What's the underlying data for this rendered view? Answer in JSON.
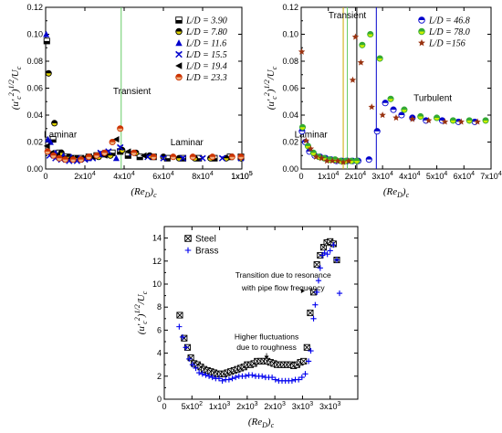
{
  "chart_data": [
    {
      "type": "scatter",
      "id": "a",
      "xlabel": "(Re_D)_c",
      "ylabel": "(u'_c^2)^{1/2}/U_c",
      "xlim": [
        0,
        100000
      ],
      "ylim": [
        0,
        0.12
      ],
      "x_ticks": [
        0,
        20000,
        40000,
        60000,
        80000,
        100000
      ],
      "x_tick_labels": [
        "0",
        "2x10⁴",
        "4x10⁴",
        "6x10⁴",
        "8x10⁴",
        "1x10⁵",
        "1x10⁵"
      ],
      "x_tick_values": [
        0,
        20000,
        40000,
        60000,
        80000,
        100000,
        120000
      ],
      "y_ticks": [
        0,
        0.02,
        0.04,
        0.06,
        0.08,
        0.1,
        0.12
      ],
      "y_tick_labels": [
        "0.00",
        "0.02",
        "0.04",
        "0.06",
        "0.08",
        "0.10",
        "0.12"
      ],
      "vertical_lines": [
        {
          "x": 38500,
          "color": "#66cc66"
        }
      ],
      "annotations": [
        {
          "text": "Transient",
          "x": 44000,
          "y": 0.0555
        },
        {
          "text": "Laminar",
          "x": 7500,
          "y": 0.0235
        },
        {
          "text": "Laminar",
          "x": 72000,
          "y": 0.0175
        }
      ],
      "series": [
        {
          "name": "L/D = 3.90",
          "marker": "square-half",
          "color": "#000000",
          "x": [
            600,
            3800,
            7000,
            10000,
            14000,
            18000,
            22000,
            26000,
            30000,
            34000,
            38000,
            42000,
            48000,
            55000,
            62000,
            70000,
            78000,
            86000,
            94000,
            102000
          ],
          "y": [
            0.095,
            0.022,
            0.012,
            0.009,
            0.008,
            0.008,
            0.009,
            0.01,
            0.011,
            0.012,
            0.013,
            0.01,
            0.009,
            0.009,
            0.008,
            0.008,
            0.008,
            0.008,
            0.009,
            0.009
          ]
        },
        {
          "name": "L/D = 7.80",
          "marker": "circle-half",
          "color": "#000000",
          "fill2": "#e0d400",
          "x": [
            1500,
            4500,
            8000,
            12000,
            16000,
            21000,
            27000,
            33000,
            39000,
            46000,
            53000,
            60000,
            68000,
            76000,
            84000,
            92000,
            100000
          ],
          "y": [
            0.071,
            0.034,
            0.012,
            0.009,
            0.008,
            0.008,
            0.009,
            0.01,
            0.014,
            0.012,
            0.01,
            0.009,
            0.008,
            0.008,
            0.008,
            0.008,
            0.008
          ]
        },
        {
          "name": "L/D = 11.6",
          "marker": "triangle-up",
          "color": "#0000cc",
          "x": [
            300,
            1200,
            2500,
            5000,
            9000,
            13000,
            17000,
            22000,
            28000,
            36000
          ],
          "y": [
            0.1,
            0.022,
            0.02,
            0.012,
            0.01,
            0.009,
            0.008,
            0.008,
            0.011,
            0.008
          ]
        },
        {
          "name": "L/D = 15.5",
          "marker": "x-cross",
          "color": "#0000cc",
          "x": [
            2000,
            5000,
            8000,
            12000,
            16000,
            20000,
            24000,
            28000,
            32000,
            38000,
            44000,
            52000,
            60000,
            70000,
            80000,
            90000,
            100000
          ],
          "y": [
            0.01,
            0.008,
            0.007,
            0.006,
            0.006,
            0.007,
            0.008,
            0.012,
            0.013,
            0.016,
            0.012,
            0.009,
            0.008,
            0.008,
            0.008,
            0.008,
            0.008
          ]
        },
        {
          "name": "L/D = 19.4",
          "marker": "triangle-left",
          "color": "#000000",
          "x": [
            700,
            3000,
            6000,
            9000,
            13000,
            18000,
            24000,
            30000,
            36000,
            42000,
            50000
          ],
          "y": [
            0.017,
            0.012,
            0.01,
            0.008,
            0.008,
            0.008,
            0.009,
            0.01,
            0.022,
            0.013,
            0.01
          ]
        },
        {
          "name": "L/D = 23.3",
          "marker": "circle-half",
          "color": "#cc3300",
          "fill2": "#f0b080",
          "x": [
            1000,
            4000,
            7000,
            10000,
            14000,
            18000,
            22000,
            26000,
            30000,
            34000,
            38000,
            45000,
            55000,
            65000,
            75000,
            85000,
            95000,
            103000
          ],
          "y": [
            0.013,
            0.01,
            0.008,
            0.007,
            0.007,
            0.007,
            0.009,
            0.01,
            0.012,
            0.02,
            0.03,
            0.012,
            0.009,
            0.009,
            0.009,
            0.009,
            0.009,
            0.009
          ]
        }
      ]
    },
    {
      "type": "scatter",
      "id": "b",
      "xlabel": "(Re_D)_c",
      "ylabel": "(u'_c^2)^{1/2}/U_c",
      "xlim": [
        0,
        70000
      ],
      "ylim": [
        0,
        0.12
      ],
      "x_ticks": [
        0,
        10000,
        20000,
        30000,
        40000,
        50000,
        60000,
        70000
      ],
      "x_tick_labels": [
        "0",
        "1x10⁴",
        "2x10⁴",
        "3x10⁴",
        "4x10⁴",
        "5x10⁴",
        "6x10⁴",
        "7x10⁴"
      ],
      "y_ticks": [
        0,
        0.02,
        0.04,
        0.06,
        0.08,
        0.1,
        0.12
      ],
      "y_tick_labels": [
        "0.00",
        "0.02",
        "0.04",
        "0.06",
        "0.08",
        "0.10",
        "0.12"
      ],
      "vertical_lines": [
        {
          "x": 15500,
          "color": "#ccaa00"
        },
        {
          "x": 17000,
          "color": "#66cc66"
        },
        {
          "x": 20500,
          "color": "#000000"
        },
        {
          "x": 27700,
          "color": "#0000cc"
        }
      ],
      "annotations": [
        {
          "text": "Transient",
          "x": 17000,
          "y": 0.112
        },
        {
          "text": "Laminar",
          "x": 3600,
          "y": 0.0235
        },
        {
          "text": "Turbulent",
          "x": 48500,
          "y": 0.0505
        }
      ],
      "series": [
        {
          "name": "L/D = 46.8",
          "marker": "circle-half",
          "color": "#0000cc",
          "x": [
            300,
            1500,
            3000,
            5000,
            7000,
            9000,
            11000,
            13000,
            15000,
            17000,
            19000,
            21000,
            25000,
            28000,
            31000,
            34000,
            37000,
            41000,
            46000,
            52000,
            58000,
            64000
          ],
          "y": [
            0.028,
            0.02,
            0.013,
            0.01,
            0.009,
            0.008,
            0.007,
            0.006,
            0.006,
            0.006,
            0.006,
            0.006,
            0.007,
            0.028,
            0.049,
            0.044,
            0.04,
            0.038,
            0.036,
            0.036,
            0.035,
            0.035
          ]
        },
        {
          "name": "L/D = 78.0",
          "marker": "circle-half",
          "color": "#33aa33",
          "fill2": "#ccee00",
          "x": [
            500,
            2500,
            4500,
            6500,
            8500,
            10500,
            12500,
            14500,
            16500,
            18500,
            20500,
            22500,
            25500,
            29000,
            33000,
            38000,
            44000,
            50000,
            56000,
            62000,
            68000
          ],
          "y": [
            0.031,
            0.017,
            0.012,
            0.009,
            0.008,
            0.007,
            0.007,
            0.006,
            0.006,
            0.006,
            0.006,
            0.092,
            0.1,
            0.082,
            0.052,
            0.044,
            0.039,
            0.038,
            0.036,
            0.036,
            0.036
          ]
        },
        {
          "name": "L/D =156",
          "marker": "star",
          "color": "#993311",
          "x": [
            200,
            1800,
            3500,
            5500,
            7500,
            9500,
            11500,
            13500,
            15500,
            17500,
            19000,
            20000,
            22000,
            26000,
            30000,
            35000,
            41000,
            47000,
            53000,
            59000,
            65000
          ],
          "y": [
            0.087,
            0.021,
            0.015,
            0.009,
            0.008,
            0.006,
            0.006,
            0.006,
            0.005,
            0.006,
            0.066,
            0.098,
            0.079,
            0.046,
            0.04,
            0.038,
            0.037,
            0.036,
            0.035,
            0.035,
            0.035
          ]
        }
      ]
    },
    {
      "type": "scatter",
      "id": "c",
      "xlabel": "(Re_D)_c",
      "ylabel": "(u'_c^2)^{1/2}/U_c",
      "xlim": [
        0,
        3500
      ],
      "ylim": [
        0,
        15
      ],
      "x_ticks": [
        0,
        500,
        1000,
        1500,
        2000,
        2500,
        3000,
        3500
      ],
      "x_tick_labels": [
        "0",
        "5x10²",
        "1x10³",
        "2x10³",
        "2x10³",
        "3x10³",
        "3x10³",
        ""
      ],
      "x_tick_values": [
        0,
        500,
        1000,
        1500,
        2000,
        2500,
        3000,
        3500
      ],
      "y_ticks": [
        0,
        2,
        4,
        6,
        8,
        10,
        12,
        14
      ],
      "y_tick_labels": [
        "0",
        "2",
        "4",
        "6",
        "8",
        "10",
        "12",
        "14"
      ],
      "annotations": [
        {
          "text": "Transition due to resonance",
          "x": 2150,
          "y": 10.55
        },
        {
          "text": "with pipe flow frequency",
          "x": 2150,
          "y": 9.45
        },
        {
          "text": "Higher fluctuations",
          "x": 1850,
          "y": 5.2
        },
        {
          "text": "due to roughness",
          "x": 1850,
          "y": 4.3
        }
      ],
      "series": [
        {
          "name": "Steel",
          "marker": "square-x",
          "color": "#000000",
          "x": [
            280,
            360,
            420,
            480,
            540,
            600,
            660,
            720,
            780,
            840,
            900,
            960,
            1020,
            1080,
            1140,
            1200,
            1260,
            1320,
            1380,
            1440,
            1500,
            1560,
            1620,
            1680,
            1740,
            1800,
            1860,
            1920,
            1980,
            2040,
            2100,
            2160,
            2220,
            2280,
            2340,
            2400,
            2460,
            2520,
            2580,
            2640,
            2700,
            2760,
            2820,
            2880,
            2940,
            3000,
            3060,
            3120
          ],
          "y": [
            7.3,
            5.3,
            4.5,
            3.6,
            3.1,
            3.0,
            2.8,
            2.6,
            2.5,
            2.4,
            2.3,
            2.2,
            2.2,
            2.2,
            2.3,
            2.4,
            2.5,
            2.6,
            2.7,
            2.8,
            3.0,
            3.0,
            3.1,
            3.3,
            3.3,
            3.3,
            3.3,
            3.2,
            3.1,
            3.0,
            3.0,
            3.0,
            3.0,
            3.0,
            2.9,
            3.0,
            3.2,
            3.3,
            4.5,
            7.5,
            9.3,
            11.7,
            12.5,
            13.2,
            13.6,
            13.7,
            13.5,
            12.1
          ]
        },
        {
          "name": "Brass",
          "marker": "plus",
          "color": "#0000ee",
          "x": [
            270,
            330,
            390,
            450,
            510,
            570,
            630,
            690,
            750,
            810,
            870,
            930,
            990,
            1050,
            1110,
            1170,
            1230,
            1290,
            1350,
            1410,
            1470,
            1530,
            1590,
            1650,
            1710,
            1770,
            1830,
            1890,
            1950,
            2010,
            2070,
            2130,
            2190,
            2250,
            2310,
            2370,
            2430,
            2490,
            2550,
            2610,
            2650,
            2700,
            2730,
            2760,
            2790,
            2820,
            2860,
            2900,
            2950,
            3000,
            3060,
            3120,
            3170
          ],
          "y": [
            6.3,
            5.4,
            4.5,
            3.5,
            3.0,
            2.7,
            2.3,
            2.2,
            2.1,
            2.0,
            1.9,
            1.8,
            1.8,
            1.6,
            1.7,
            1.7,
            1.8,
            1.9,
            2.0,
            2.0,
            2.0,
            2.1,
            2.1,
            2.0,
            2.0,
            2.0,
            1.9,
            1.9,
            1.9,
            1.7,
            1.6,
            1.6,
            1.6,
            1.6,
            1.6,
            1.7,
            1.7,
            1.9,
            2.2,
            3.3,
            4.2,
            7.0,
            8.2,
            9.3,
            10.3,
            11.4,
            12.5,
            12.7,
            12.6,
            12.9,
            13.4,
            12.1,
            9.2
          ]
        }
      ]
    }
  ],
  "labels": {
    "a_xlabel_main": "(Re",
    "a_xlabel_sub": "D",
    "a_xlabel_end": ")",
    "a_xlabel_c": "c"
  }
}
